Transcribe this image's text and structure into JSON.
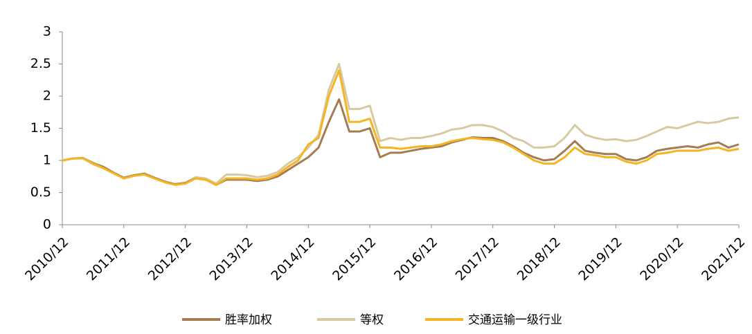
{
  "chart_data": {
    "type": "line",
    "categories": [
      "2010/12",
      null,
      null,
      null,
      null,
      null,
      "2011/12",
      null,
      null,
      null,
      null,
      null,
      "2012/12",
      null,
      null,
      null,
      null,
      null,
      "2013/12",
      null,
      null,
      null,
      null,
      null,
      "2014/12",
      null,
      null,
      null,
      null,
      null,
      "2015/12",
      null,
      null,
      null,
      null,
      null,
      "2016/12",
      null,
      null,
      null,
      null,
      null,
      "2017/12",
      null,
      null,
      null,
      null,
      null,
      "2018/12",
      null,
      null,
      null,
      null,
      null,
      "2019/12",
      null,
      null,
      null,
      null,
      null,
      "2020/12",
      null,
      null,
      null,
      null,
      null,
      "2021/12"
    ],
    "series": [
      {
        "name": "胜率加权",
        "color": "#a57c52",
        "values": [
          1.0,
          1.03,
          1.04,
          0.96,
          0.9,
          0.81,
          0.73,
          0.77,
          0.79,
          0.73,
          0.67,
          0.63,
          0.65,
          0.72,
          0.7,
          0.62,
          0.7,
          0.7,
          0.7,
          0.68,
          0.7,
          0.75,
          0.85,
          0.95,
          1.05,
          1.2,
          1.6,
          1.95,
          1.45,
          1.45,
          1.5,
          1.05,
          1.12,
          1.12,
          1.15,
          1.18,
          1.2,
          1.22,
          1.28,
          1.32,
          1.36,
          1.35,
          1.35,
          1.3,
          1.22,
          1.12,
          1.05,
          1.0,
          1.02,
          1.15,
          1.3,
          1.15,
          1.12,
          1.1,
          1.1,
          1.02,
          1.0,
          1.05,
          1.15,
          1.18,
          1.2,
          1.22,
          1.2,
          1.25,
          1.28,
          1.2,
          1.25
        ]
      },
      {
        "name": "等权",
        "color": "#d9c9a2",
        "values": [
          1.0,
          1.03,
          1.03,
          0.94,
          0.88,
          0.8,
          0.72,
          0.76,
          0.8,
          0.73,
          0.67,
          0.63,
          0.65,
          0.74,
          0.72,
          0.64,
          0.78,
          0.78,
          0.77,
          0.74,
          0.76,
          0.82,
          0.95,
          1.05,
          1.2,
          1.4,
          2.1,
          2.5,
          1.8,
          1.8,
          1.85,
          1.3,
          1.35,
          1.32,
          1.35,
          1.35,
          1.38,
          1.42,
          1.48,
          1.5,
          1.55,
          1.55,
          1.52,
          1.45,
          1.35,
          1.3,
          1.2,
          1.2,
          1.22,
          1.35,
          1.55,
          1.4,
          1.35,
          1.32,
          1.33,
          1.3,
          1.32,
          1.38,
          1.45,
          1.52,
          1.5,
          1.55,
          1.6,
          1.58,
          1.6,
          1.65,
          1.67
        ]
      },
      {
        "name": "交通运输一级行业",
        "color": "#f5b522",
        "values": [
          1.0,
          1.03,
          1.04,
          0.95,
          0.88,
          0.8,
          0.72,
          0.76,
          0.78,
          0.72,
          0.66,
          0.62,
          0.64,
          0.72,
          0.7,
          0.62,
          0.72,
          0.72,
          0.72,
          0.7,
          0.72,
          0.78,
          0.9,
          1.0,
          1.25,
          1.35,
          2.0,
          2.4,
          1.6,
          1.6,
          1.65,
          1.2,
          1.2,
          1.18,
          1.2,
          1.22,
          1.22,
          1.25,
          1.3,
          1.33,
          1.35,
          1.33,
          1.32,
          1.28,
          1.2,
          1.1,
          1.0,
          0.95,
          0.95,
          1.05,
          1.2,
          1.1,
          1.08,
          1.05,
          1.05,
          0.98,
          0.95,
          1.0,
          1.1,
          1.12,
          1.15,
          1.15,
          1.15,
          1.18,
          1.2,
          1.15,
          1.18
        ]
      }
    ],
    "ylim": [
      0,
      3
    ],
    "yticks": [
      0,
      0.5,
      1,
      1.5,
      2,
      2.5,
      3
    ],
    "grid": false,
    "legend": "bottom"
  }
}
